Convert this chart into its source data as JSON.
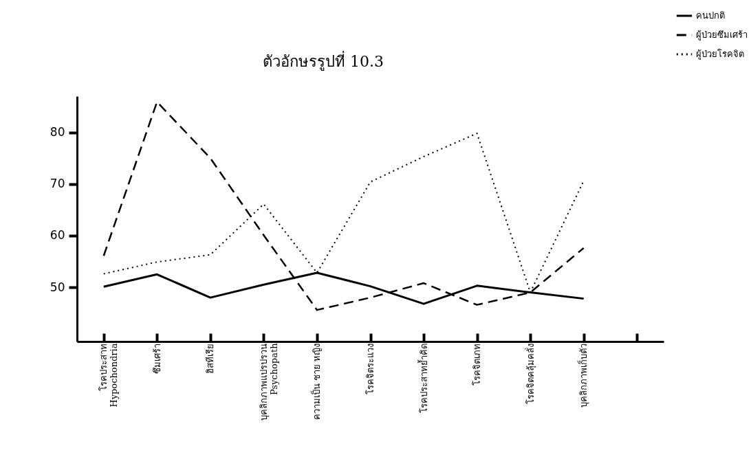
{
  "chart_data": {
    "type": "line",
    "title": "ตัวอักษรรูปที่ 10.3",
    "categories": [
      "โรคประสาท\nHypochondria",
      "ซึมเศร้า",
      "ฮิสทีเรีย",
      "บุคลิกภาพแปรปรวน\nPsychopath",
      "ความเป็น ชาย หญิง",
      "โรคจิตระแวง",
      "โรคประสาทย้ำคิด",
      "โรคจิตเภท",
      "โรคจิตคลุ้มคลั่ง",
      "บุคลิกภาพเก็บตัว",
      null
    ],
    "series": [
      {
        "name": "คนปกติ",
        "color": "#000000",
        "line_style": "solid",
        "values": [
          50.1,
          52.5,
          48,
          50.5,
          52.8,
          50.2,
          46.8,
          50.3,
          49,
          47.8,
          null
        ]
      },
      {
        "name": "ผู้ป่วยซึมเศร้า",
        "color": "#000000",
        "line_style": "dashed",
        "values": [
          56.1,
          85.9,
          75,
          60.1,
          45.6,
          48,
          50.8,
          46.6,
          49,
          57.6,
          null
        ]
      },
      {
        "name": "ผู้ป่วยโรคจิต",
        "color": "#000000",
        "line_style": "dotted",
        "values": [
          52.6,
          54.9,
          56.3,
          66.1,
          52.8,
          70.4,
          75.3,
          79.8,
          49,
          70.6,
          null
        ]
      }
    ],
    "ylim": [
      39.5,
      87
    ],
    "yticks": [
      50,
      60,
      70,
      80
    ],
    "grid": false,
    "legend": "top right"
  }
}
